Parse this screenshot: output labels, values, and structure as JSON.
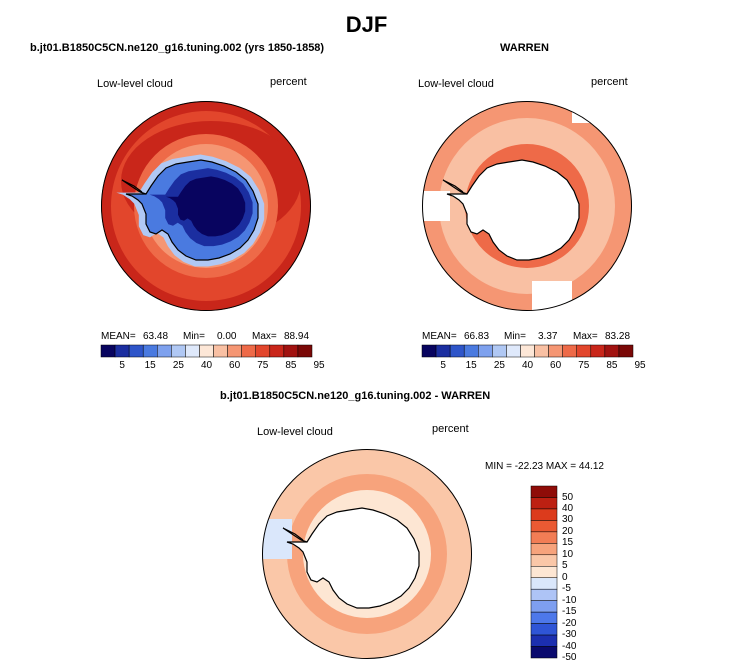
{
  "title": "DJF",
  "colors": {
    "div_scale": [
      "#08045f",
      "#1b2ea0",
      "#2e55c9",
      "#4a7ae0",
      "#7ea1ee",
      "#b0c8f4",
      "#dfe9fb",
      "#fde7d7",
      "#f9c0a3",
      "#f59673",
      "#ee6a48",
      "#e2462c",
      "#c9261a",
      "#a11210",
      "#7a0807"
    ],
    "diff_scale": [
      "#0a0a6e",
      "#1c2fb0",
      "#2f55d6",
      "#4d78ea",
      "#7e9ff0",
      "#aec4f6",
      "#dae7fb",
      "#fde6d3",
      "#fac7a8",
      "#f7a37c",
      "#f27d55",
      "#ea5a33",
      "#dc3b1c",
      "#bd2012",
      "#8f0c08"
    ],
    "land": "#ffffff",
    "coast": "#000000"
  },
  "panels": [
    {
      "title": "b.jt01.B1850C5CN.ne120_g16.tuning.002 (yrs 1850-1858)",
      "variable": "Low-level cloud",
      "units": "percent",
      "stats": {
        "mean_label": "MEAN=",
        "mean": "63.48",
        "min_label": "Min=",
        "min": "0.00",
        "max_label": "Max=",
        "max": "88.94"
      }
    },
    {
      "title": "WARREN",
      "variable": "Low-level cloud",
      "units": "percent",
      "stats": {
        "mean_label": "MEAN=",
        "mean": "66.83",
        "min_label": "Min=",
        "min": "3.37",
        "max_label": "Max=",
        "max": "83.28"
      }
    },
    {
      "title": "b.jt01.B1850C5CN.ne120_g16.tuning.002 - WARREN",
      "variable": "Low-level cloud",
      "units": "percent",
      "stats_text": "MIN = -22.23  MAX =  44.12"
    }
  ],
  "colorbar_labels": [
    "5",
    "15",
    "25",
    "40",
    "60",
    "75",
    "85",
    "95"
  ],
  "diff_colorbar_labels": [
    "50",
    "40",
    "30",
    "20",
    "15",
    "10",
    "5",
    "0",
    "-5",
    "-10",
    "-15",
    "-20",
    "-30",
    "-40",
    "-50"
  ],
  "chart_data": [
    {
      "type": "heatmap",
      "projection": "south-polar-stereographic",
      "title": "b.jt01.B1850C5CN.ne120_g16.tuning.002 (yrs 1850-1858)",
      "field": "Low-level cloud",
      "units": "percent",
      "mean": 63.48,
      "min": 0.0,
      "max": 88.94,
      "levels": [
        5,
        10,
        15,
        20,
        25,
        30,
        40,
        50,
        60,
        70,
        75,
        80,
        85,
        90,
        95
      ]
    },
    {
      "type": "heatmap",
      "projection": "south-polar-stereographic",
      "title": "WARREN",
      "field": "Low-level cloud",
      "units": "percent",
      "mean": 66.83,
      "min": 3.37,
      "max": 83.28,
      "levels": [
        5,
        10,
        15,
        20,
        25,
        30,
        40,
        50,
        60,
        70,
        75,
        80,
        85,
        90,
        95
      ]
    },
    {
      "type": "heatmap",
      "projection": "south-polar-stereographic",
      "title": "b.jt01.B1850C5CN.ne120_g16.tuning.002 - WARREN",
      "field": "Low-level cloud",
      "units": "percent",
      "min": -22.23,
      "max": 44.12,
      "levels": [
        -50,
        -40,
        -30,
        -20,
        -15,
        -10,
        -5,
        0,
        5,
        10,
        15,
        20,
        30,
        40,
        50
      ]
    }
  ]
}
